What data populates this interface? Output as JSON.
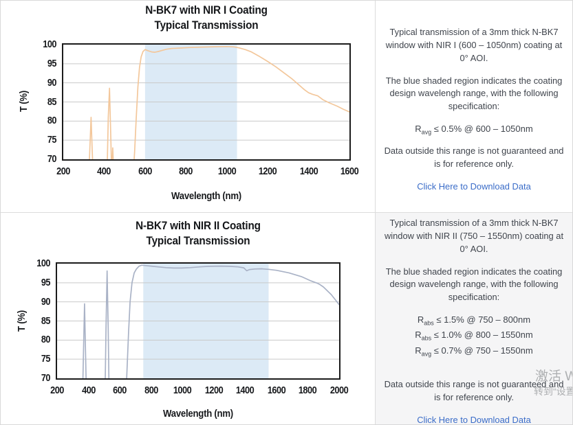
{
  "colors": {
    "nir1_curve": "#f3c79b",
    "nir2_curve": "#a9b2c6",
    "shaded_region": "#dceaf6",
    "link": "#3a6cc8",
    "plot_border": "#1b1b1b",
    "gridline": "#c9c9c9"
  },
  "chart_data": [
    {
      "type": "line",
      "title": "N-BK7 with NIR I Coating",
      "subtitle": "Typical Transmission",
      "xlabel": "Wavelength (nm)",
      "ylabel": "T (%)",
      "xlim": [
        200,
        1600
      ],
      "ylim": [
        70,
        100
      ],
      "xticks": [
        200,
        400,
        600,
        800,
        1000,
        1200,
        1400,
        1600
      ],
      "yticks": [
        70,
        75,
        80,
        85,
        90,
        95,
        100
      ],
      "grid": "horizontal",
      "legend": "none",
      "shaded_region": {
        "from": 600,
        "to": 1050,
        "color": "#dceaf6",
        "meaning": "coating design wavelength range"
      },
      "line_color": "#f3c79b",
      "points": [
        [
          325,
          66
        ],
        [
          331,
          74
        ],
        [
          336,
          81
        ],
        [
          341,
          73
        ],
        [
          346,
          66
        ],
        [
          414,
          66
        ],
        [
          420,
          81
        ],
        [
          426,
          88.6
        ],
        [
          432,
          77
        ],
        [
          437,
          66
        ],
        [
          442,
          73
        ],
        [
          447,
          66
        ],
        [
          540,
          64
        ],
        [
          549,
          72
        ],
        [
          557,
          81
        ],
        [
          565,
          89
        ],
        [
          573,
          94
        ],
        [
          581,
          96.8
        ],
        [
          590,
          98.2
        ],
        [
          600,
          98.7
        ],
        [
          615,
          98.4
        ],
        [
          632,
          98.1
        ],
        [
          648,
          98.0
        ],
        [
          665,
          98.2
        ],
        [
          685,
          98.5
        ],
        [
          705,
          98.8
        ],
        [
          730,
          99.0
        ],
        [
          770,
          99.1
        ],
        [
          820,
          99.25
        ],
        [
          880,
          99.35
        ],
        [
          940,
          99.45
        ],
        [
          1000,
          99.5
        ],
        [
          1035,
          99.4
        ],
        [
          1060,
          99.15
        ],
        [
          1090,
          98.7
        ],
        [
          1120,
          98.1
        ],
        [
          1160,
          96.9
        ],
        [
          1200,
          95.6
        ],
        [
          1240,
          94.2
        ],
        [
          1280,
          92.6
        ],
        [
          1320,
          91.0
        ],
        [
          1350,
          89.6
        ],
        [
          1380,
          88.2
        ],
        [
          1400,
          87.4
        ],
        [
          1420,
          87.0
        ],
        [
          1445,
          86.6
        ],
        [
          1470,
          85.6
        ],
        [
          1500,
          84.8
        ],
        [
          1540,
          83.9
        ],
        [
          1570,
          83.1
        ],
        [
          1600,
          82.4
        ]
      ]
    },
    {
      "type": "line",
      "title": "N-BK7 with NIR II Coating",
      "subtitle": "Typical Transmission",
      "xlabel": "Wavelength (nm)",
      "ylabel": "T (%)",
      "xlim": [
        200,
        2000
      ],
      "ylim": [
        70,
        100
      ],
      "xticks": [
        200,
        400,
        600,
        800,
        1000,
        1200,
        1400,
        1600,
        1800,
        2000
      ],
      "yticks": [
        70,
        75,
        80,
        85,
        90,
        95,
        100
      ],
      "grid": "horizontal",
      "legend": "none",
      "shaded_region": {
        "from": 750,
        "to": 1550,
        "color": "#dceaf6",
        "meaning": "coating design wavelength range"
      },
      "line_color": "#a9b2c6",
      "points": [
        [
          363,
          66
        ],
        [
          369,
          78
        ],
        [
          375,
          89.5
        ],
        [
          381,
          78
        ],
        [
          387,
          66
        ],
        [
          506,
          66
        ],
        [
          512,
          83
        ],
        [
          519,
          98.1
        ],
        [
          526,
          83
        ],
        [
          532,
          66
        ],
        [
          636,
          62
        ],
        [
          646,
          72
        ],
        [
          656,
          82
        ],
        [
          666,
          90
        ],
        [
          678,
          95
        ],
        [
          692,
          97.6
        ],
        [
          706,
          98.6
        ],
        [
          722,
          99.3
        ],
        [
          740,
          99.6
        ],
        [
          765,
          99.5
        ],
        [
          800,
          99.35
        ],
        [
          845,
          99.15
        ],
        [
          895,
          98.95
        ],
        [
          945,
          98.85
        ],
        [
          995,
          98.85
        ],
        [
          1050,
          98.95
        ],
        [
          1110,
          99.15
        ],
        [
          1170,
          99.3
        ],
        [
          1240,
          99.35
        ],
        [
          1300,
          99.3
        ],
        [
          1355,
          99.15
        ],
        [
          1392,
          98.9
        ],
        [
          1410,
          98.15
        ],
        [
          1428,
          98.45
        ],
        [
          1460,
          98.6
        ],
        [
          1505,
          98.65
        ],
        [
          1550,
          98.5
        ],
        [
          1600,
          98.25
        ],
        [
          1680,
          97.6
        ],
        [
          1760,
          96.6
        ],
        [
          1820,
          95.5
        ],
        [
          1860,
          94.9
        ],
        [
          1875,
          94.6
        ],
        [
          1900,
          93.9
        ],
        [
          1950,
          91.9
        ],
        [
          2000,
          89.3
        ]
      ]
    }
  ],
  "panels": [
    {
      "info": {
        "p1": "Typical transmission of a 3mm thick N-BK7 window with NIR I (600 – 1050nm) coating at 0° AOI.",
        "p2": "The blue shaded region indicates the coating design wavelengh range, with the following specification:",
        "specs": [
          {
            "base": "R",
            "sub": "avg",
            "rest": " ≤ 0.5% @ 600 – 1050nm"
          }
        ],
        "note": "Data outside this range is not guaranteed and is for reference only.",
        "link": "Click Here to Download Data"
      }
    },
    {
      "info": {
        "p1": "Typical transmission of a 3mm thick N-BK7 window with NIR II (750 – 1550nm) coating at 0° AOI.",
        "p2": "The blue shaded region indicates the coating design wavelengh range, with the following specification:",
        "specs": [
          {
            "base": "R",
            "sub": "abs",
            "rest": " ≤ 1.5% @ 750 – 800nm"
          },
          {
            "base": "R",
            "sub": "abs",
            "rest": " ≤ 1.0% @ 800 – 1550nm"
          },
          {
            "base": "R",
            "sub": "avg",
            "rest": " ≤ 0.7% @ 750 – 1550nm"
          }
        ],
        "note": "Data outside this range is not guaranteed and is for reference only.",
        "link": "Click Here to Download Data"
      }
    }
  ],
  "watermark": {
    "line1": "激活 W",
    "line2": "转到“设置”"
  }
}
